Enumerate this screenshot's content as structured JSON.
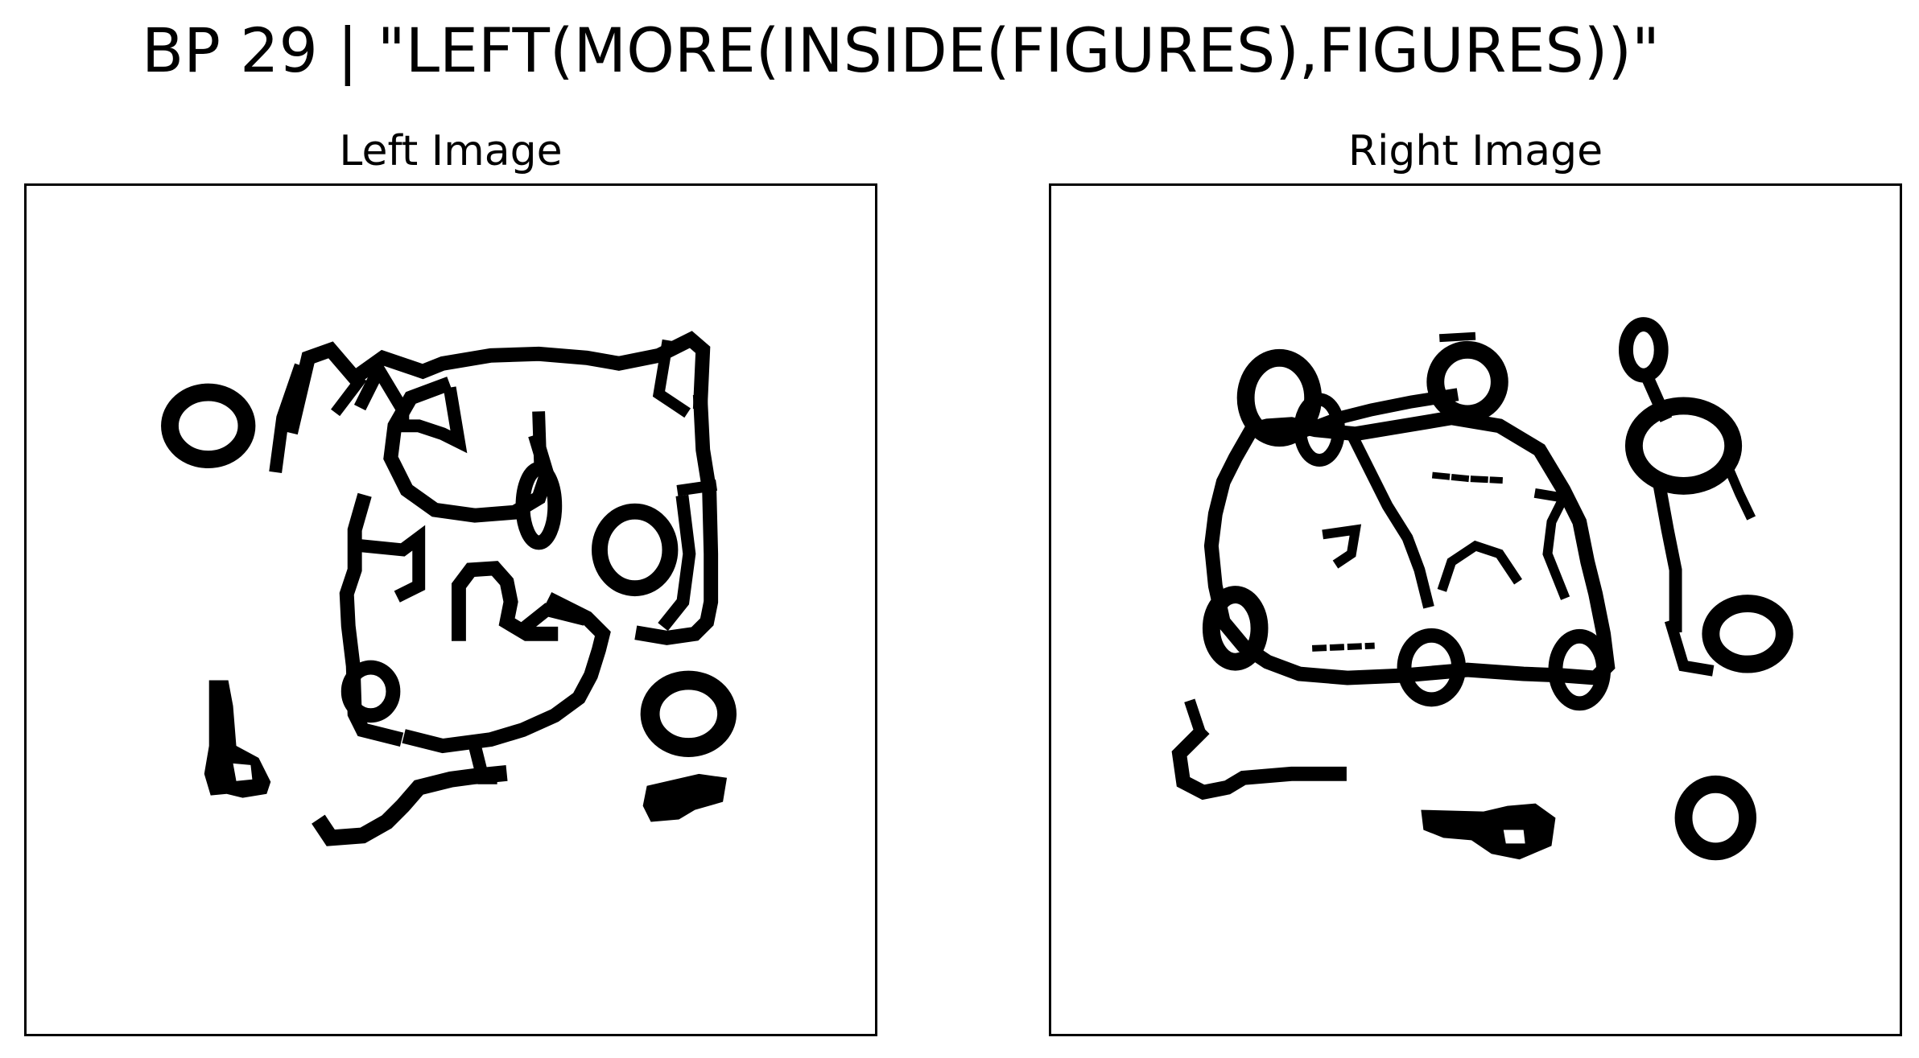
{
  "title": "BP 29 | \"LEFT(MORE(INSIDE(FIGURES),FIGURES))\"",
  "panels": {
    "left": {
      "caption": "Left Image"
    },
    "right": {
      "caption": "Right Image"
    }
  },
  "colors": {
    "ink": "#000000",
    "background": "#ffffff",
    "frame": "#000000"
  }
}
